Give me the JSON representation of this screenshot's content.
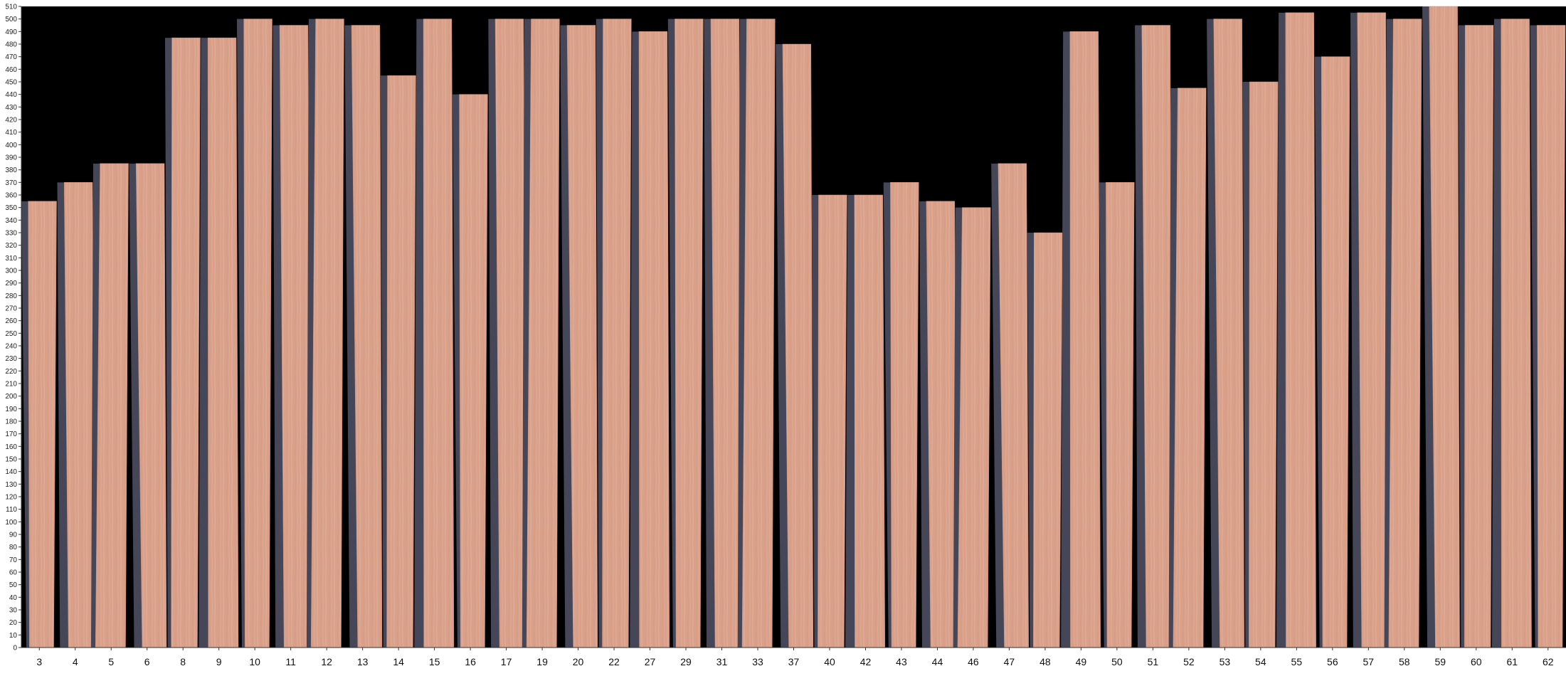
{
  "chart_data": {
    "type": "bar",
    "title": "",
    "xlabel": "",
    "ylabel": "",
    "ylim": [
      0,
      510
    ],
    "yticks": [
      0,
      10,
      20,
      30,
      40,
      50,
      60,
      70,
      80,
      90,
      100,
      110,
      120,
      130,
      140,
      150,
      160,
      170,
      180,
      190,
      200,
      210,
      220,
      230,
      240,
      250,
      260,
      270,
      280,
      290,
      300,
      310,
      320,
      330,
      340,
      350,
      360,
      370,
      380,
      390,
      400,
      410,
      420,
      430,
      440,
      450,
      460,
      470,
      480,
      490,
      500,
      510
    ],
    "grid": false,
    "legend": "none",
    "categories": [
      "3",
      "4",
      "5",
      "6",
      "8",
      "9",
      "10",
      "11",
      "12",
      "13",
      "14",
      "15",
      "16",
      "17",
      "19",
      "20",
      "22",
      "27",
      "29",
      "31",
      "33",
      "37",
      "40",
      "42",
      "43",
      "44",
      "46",
      "47",
      "48",
      "49",
      "50",
      "51",
      "52",
      "53",
      "54",
      "55",
      "56",
      "57",
      "58",
      "59",
      "60",
      "61",
      "62"
    ],
    "values": [
      355,
      370,
      385,
      385,
      485,
      485,
      500,
      495,
      500,
      495,
      455,
      500,
      440,
      500,
      500,
      495,
      500,
      490,
      500,
      500,
      500,
      480,
      360,
      360,
      370,
      355,
      350,
      385,
      330,
      490,
      370,
      495,
      445,
      500,
      450,
      505,
      470,
      505,
      500,
      510,
      495,
      500,
      495
    ],
    "colors": {
      "plot_background": "#000000",
      "veneer": "#d9a08a",
      "veneer_light": "#e6b6a2",
      "veneer_dark": "#c98c74",
      "shadow": "#454657",
      "axis": "#333333"
    }
  }
}
